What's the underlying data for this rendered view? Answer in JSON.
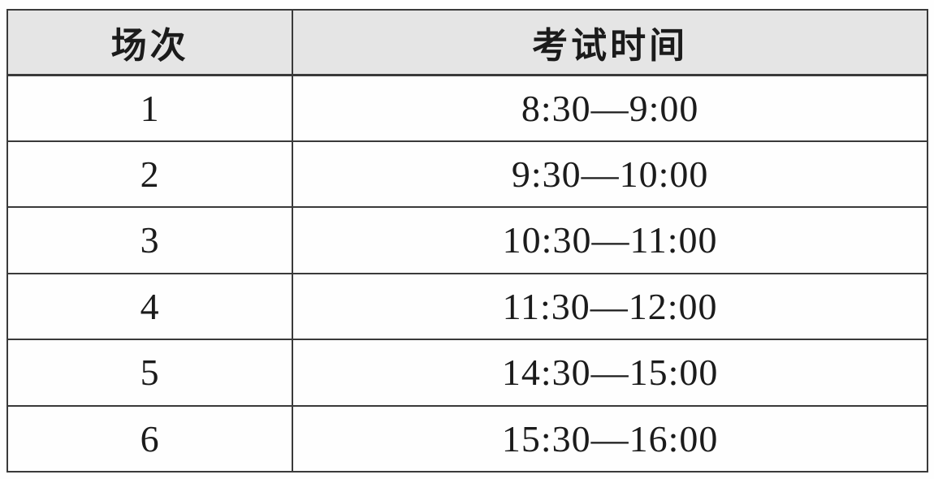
{
  "colors": {
    "header_bg": "#e5e5e5",
    "border": "#3a3a3a",
    "text": "#1b1b1b",
    "page_bg": "#fefefe"
  },
  "table": {
    "headers": [
      {
        "label": "场次"
      },
      {
        "label": "考试时间"
      }
    ],
    "rows": [
      {
        "session": "1",
        "time": "8:30—9:00"
      },
      {
        "session": "2",
        "time": "9:30—10:00"
      },
      {
        "session": "3",
        "time": "10:30—11:00"
      },
      {
        "session": "4",
        "time": "11:30—12:00"
      },
      {
        "session": "5",
        "time": "14:30—15:00"
      },
      {
        "session": "6",
        "time": "15:30—16:00"
      }
    ]
  }
}
